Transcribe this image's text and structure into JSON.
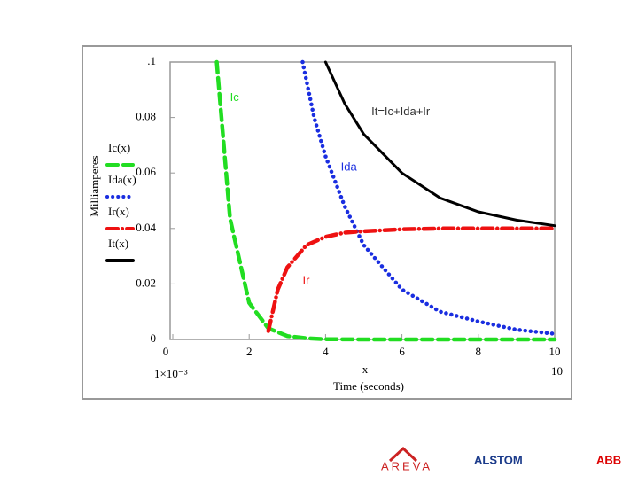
{
  "chart_data": {
    "type": "line",
    "y_label": "Milliamperes",
    "x_label": "x",
    "x_sublabel": "Time (seconds)",
    "range_labels": [
      "1×10⁻³",
      "10"
    ],
    "xlim": [
      0,
      10
    ],
    "xticks": [
      0,
      2,
      4,
      6,
      8,
      10
    ],
    "ylim": [
      0,
      0.1
    ],
    "yticks": [
      0,
      0.02,
      0.04,
      0.06,
      0.08,
      {
        "value": 0.1,
        "label": ".1"
      }
    ],
    "series": [
      {
        "name": "Ic(x)",
        "color": "#22dd22",
        "dash": "dashed",
        "x": [
          1.15,
          1.5,
          2,
          2.5,
          3,
          3.5,
          4,
          5,
          6,
          8,
          10
        ],
        "values": [
          0.1,
          0.0435,
          0.0132,
          0.004,
          0.0012,
          0.0004,
          0.0001,
          0,
          0,
          0,
          0
        ]
      },
      {
        "name": "Ida(x)",
        "color": "#1a2ee0",
        "dash": "dotted",
        "x": [
          3.4,
          3.7,
          4,
          4.5,
          5,
          6,
          7,
          8,
          9,
          10
        ],
        "values": [
          0.1,
          0.08,
          0.066,
          0.048,
          0.034,
          0.018,
          0.01,
          0.0065,
          0.0035,
          0.002
        ]
      },
      {
        "name": "Ir(x)",
        "color": "#ee1111",
        "dash": "dashdot",
        "x": [
          2.5,
          2.75,
          3,
          3.5,
          4,
          4.5,
          5,
          6,
          7,
          8,
          10
        ],
        "values": [
          0.003,
          0.018,
          0.026,
          0.034,
          0.037,
          0.0385,
          0.039,
          0.0397,
          0.04,
          0.04,
          0.04
        ]
      },
      {
        "name": "It(x)",
        "color": "#000000",
        "dash": "solid",
        "x": [
          4,
          4.5,
          5,
          6,
          7,
          8,
          9,
          10
        ],
        "values": [
          0.1,
          0.085,
          0.074,
          0.06,
          0.051,
          0.046,
          0.043,
          0.041
        ]
      }
    ],
    "annotations": [
      {
        "text": "Ic",
        "x": 1.5,
        "y": 0.087
      },
      {
        "text": "Ida",
        "x": 4.4,
        "y": 0.062
      },
      {
        "text": "Ir",
        "x": 3.4,
        "y": 0.021
      },
      {
        "text": "It=Ic+Ida+Ir",
        "x": 5.2,
        "y": 0.082
      }
    ]
  },
  "logos": [
    "AREVA",
    "ALSTOM",
    "ABB"
  ]
}
